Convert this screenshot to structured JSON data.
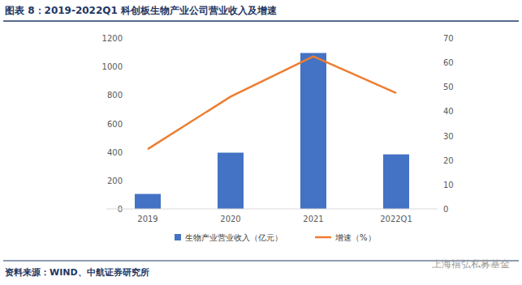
{
  "chart_data": {
    "type": "bar",
    "title": "图表 8：2019-2022Q1 科创板生物产业公司营业收入及增速",
    "source": "资料来源：WIND、中航证券研究所",
    "annotations": [
      "上海禧弘私募基金"
    ],
    "categories": [
      "2019",
      "2020",
      "2021",
      "2022Q1"
    ],
    "series": [
      {
        "name": "生物产业营业收入（亿元）",
        "type": "bar",
        "color": "#4472c4",
        "values": [
          105,
          395,
          1095,
          383
        ]
      },
      {
        "name": "增速（%）",
        "type": "line",
        "color": "#ed7d31",
        "axis": "y2",
        "values": [
          24.5,
          46,
          62.5,
          47.5
        ]
      }
    ],
    "ylim": [
      0,
      1200
    ],
    "yticks": [
      0,
      200,
      400,
      600,
      800,
      1000,
      1200
    ],
    "y2lim": [
      0,
      70
    ],
    "y2ticks": [
      0,
      10,
      20,
      30,
      40,
      50,
      60,
      70
    ],
    "grid": false,
    "legend": "bottom"
  }
}
